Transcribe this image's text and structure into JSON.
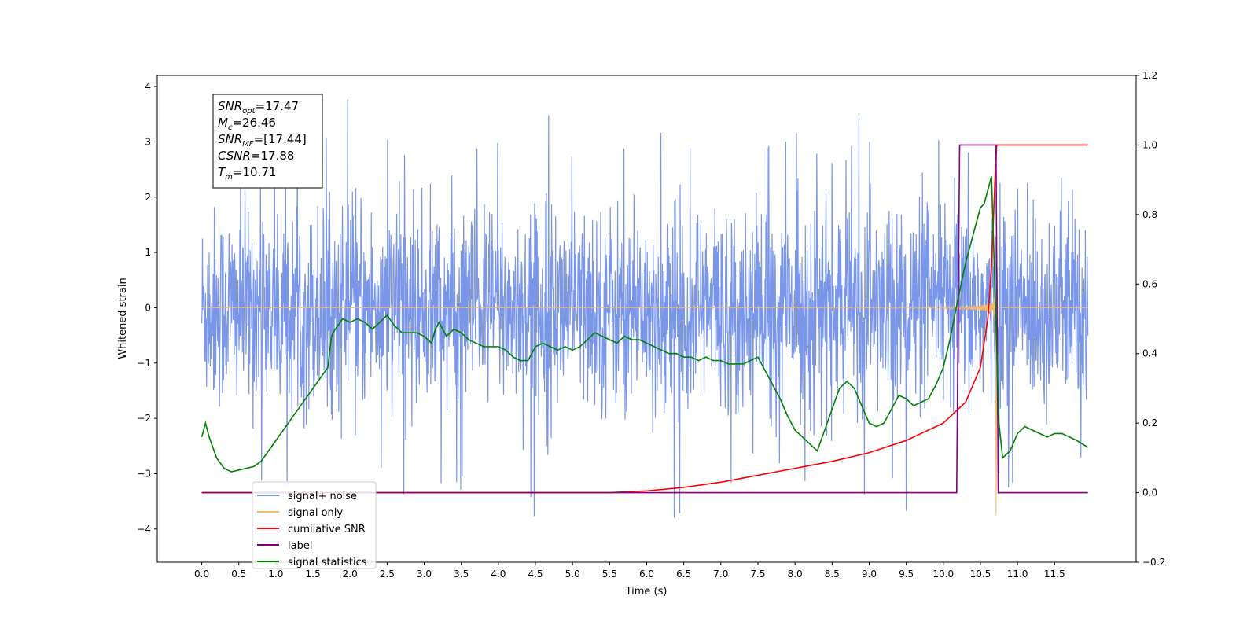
{
  "chart_data": {
    "type": "line",
    "xlabel": "Time (s)",
    "ylabel": "Whitened strain",
    "xlim": [
      -0.6,
      12.6
    ],
    "ylim": [
      -4.6,
      4.2
    ],
    "y2lim": [
      -0.2,
      1.2
    ],
    "x_ticks": [
      "0.0",
      "0.5",
      "1.0",
      "1.5",
      "2.0",
      "2.5",
      "3.0",
      "3.5",
      "4.0",
      "4.5",
      "5.0",
      "5.5",
      "6.0",
      "6.5",
      "7.0",
      "7.5",
      "8.0",
      "8.5",
      "9.0",
      "9.5",
      "10.0",
      "10.5",
      "11.0",
      "11.5"
    ],
    "y_ticks": [
      "4",
      "3",
      "2",
      "1",
      "0",
      "−1",
      "−2",
      "−3",
      "−4"
    ],
    "y2_ticks": [
      "1.2",
      "1.0",
      "0.8",
      "0.6",
      "0.4",
      "0.2",
      "0.0",
      "−0.2"
    ],
    "grid": false,
    "legend_position": "lower-left",
    "annotation": {
      "lines": [
        {
          "sym": "SNR",
          "sub": "opt",
          "value": "=17.47"
        },
        {
          "sym": "M",
          "sub": "c",
          "value": "=26.46"
        },
        {
          "sym": "SNR",
          "sub": "MF",
          "value": "=[17.44]"
        },
        {
          "sym": "CSNR",
          "sub": "",
          "value": "=17.88"
        },
        {
          "sym": "T",
          "sub": "m",
          "value": "=10.71"
        }
      ]
    },
    "series": [
      {
        "name": "signal+ noise",
        "axis": "left",
        "color": "#7a96e8",
        "description_values": "noise band approx ±2.3 with spikes to ±3.8, t 0–12"
      },
      {
        "name": "signal only",
        "axis": "left",
        "color": "#f5b969",
        "merger_time": 10.71,
        "peak_amplitude": 3.45,
        "min_amplitude": -3.9
      },
      {
        "name": "cumilative SNR",
        "axis": "right",
        "color": "#ff0000",
        "x": [
          0.0,
          5.5,
          6.0,
          6.5,
          7.0,
          7.5,
          8.0,
          8.5,
          9.0,
          9.5,
          10.0,
          10.3,
          10.5,
          10.6,
          10.65,
          10.7,
          10.72,
          11.95
        ],
        "values": [
          0.0,
          0.0,
          0.005,
          0.015,
          0.03,
          0.05,
          0.07,
          0.09,
          0.115,
          0.15,
          0.2,
          0.26,
          0.36,
          0.5,
          0.65,
          0.92,
          1.0,
          1.0
        ]
      },
      {
        "name": "label",
        "axis": "right",
        "color": "#800080",
        "x": [
          0.0,
          10.18,
          10.22,
          10.68,
          10.71,
          10.74,
          11.95
        ],
        "values": [
          0.0,
          0.0,
          1.0,
          1.0,
          1.0,
          0.0,
          0.0
        ]
      },
      {
        "name": "signal statistics",
        "axis": "right",
        "color": "#008000",
        "x": [
          0.0,
          0.05,
          0.1,
          0.2,
          0.3,
          0.4,
          0.5,
          0.6,
          0.7,
          0.8,
          0.9,
          1.0,
          1.1,
          1.2,
          1.3,
          1.4,
          1.5,
          1.6,
          1.7,
          1.75,
          1.8,
          1.9,
          2.0,
          2.1,
          2.2,
          2.3,
          2.4,
          2.5,
          2.6,
          2.7,
          2.8,
          2.9,
          3.0,
          3.1,
          3.15,
          3.2,
          3.3,
          3.4,
          3.5,
          3.6,
          3.7,
          3.8,
          3.9,
          4.0,
          4.1,
          4.2,
          4.3,
          4.4,
          4.5,
          4.6,
          4.7,
          4.8,
          4.9,
          5.0,
          5.1,
          5.2,
          5.3,
          5.4,
          5.5,
          5.6,
          5.7,
          5.8,
          5.9,
          6.0,
          6.1,
          6.2,
          6.3,
          6.4,
          6.5,
          6.6,
          6.7,
          6.8,
          6.9,
          7.0,
          7.1,
          7.2,
          7.3,
          7.4,
          7.5,
          7.6,
          7.7,
          7.8,
          7.9,
          8.0,
          8.1,
          8.2,
          8.3,
          8.4,
          8.5,
          8.6,
          8.7,
          8.8,
          8.9,
          9.0,
          9.1,
          9.2,
          9.3,
          9.4,
          9.5,
          9.6,
          9.7,
          9.8,
          9.9,
          10.0,
          10.1,
          10.2,
          10.3,
          10.4,
          10.5,
          10.55,
          10.6,
          10.65,
          10.7,
          10.75,
          10.8,
          10.9,
          11.0,
          11.1,
          11.2,
          11.3,
          11.4,
          11.5,
          11.6,
          11.7,
          11.8,
          11.95
        ],
        "values": [
          0.16,
          0.2,
          0.16,
          0.1,
          0.07,
          0.06,
          0.065,
          0.07,
          0.075,
          0.09,
          0.12,
          0.15,
          0.18,
          0.21,
          0.24,
          0.27,
          0.3,
          0.33,
          0.36,
          0.45,
          0.47,
          0.5,
          0.49,
          0.5,
          0.49,
          0.47,
          0.49,
          0.51,
          0.48,
          0.46,
          0.46,
          0.46,
          0.45,
          0.43,
          0.47,
          0.49,
          0.45,
          0.47,
          0.46,
          0.44,
          0.43,
          0.42,
          0.42,
          0.42,
          0.41,
          0.39,
          0.38,
          0.38,
          0.42,
          0.43,
          0.42,
          0.41,
          0.42,
          0.41,
          0.42,
          0.44,
          0.46,
          0.45,
          0.44,
          0.43,
          0.45,
          0.44,
          0.44,
          0.43,
          0.42,
          0.41,
          0.4,
          0.4,
          0.39,
          0.39,
          0.38,
          0.39,
          0.38,
          0.38,
          0.37,
          0.37,
          0.37,
          0.38,
          0.39,
          0.35,
          0.31,
          0.27,
          0.22,
          0.18,
          0.16,
          0.14,
          0.12,
          0.18,
          0.24,
          0.3,
          0.32,
          0.3,
          0.25,
          0.2,
          0.19,
          0.2,
          0.24,
          0.28,
          0.27,
          0.25,
          0.26,
          0.27,
          0.31,
          0.36,
          0.45,
          0.56,
          0.66,
          0.74,
          0.82,
          0.83,
          0.87,
          0.91,
          0.56,
          0.2,
          0.1,
          0.12,
          0.17,
          0.19,
          0.18,
          0.17,
          0.16,
          0.17,
          0.17,
          0.16,
          0.15,
          0.13
        ]
      }
    ]
  }
}
